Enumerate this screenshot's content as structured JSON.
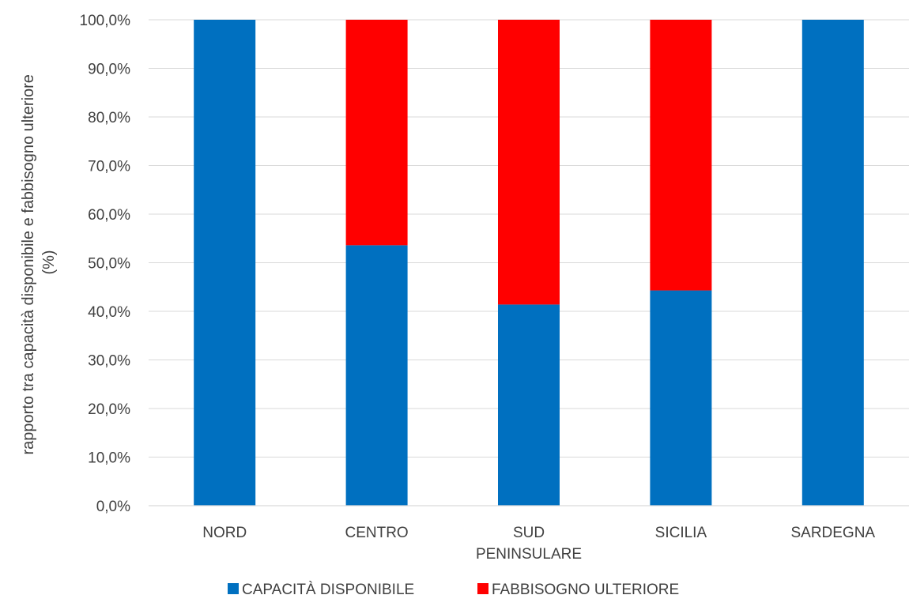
{
  "chart_data": {
    "type": "bar",
    "stacked": true,
    "categories": [
      "NORD",
      "CENTRO",
      "SUD PENINSULARE",
      "SICILIA",
      "SARDEGNA"
    ],
    "category_lines": [
      [
        "NORD"
      ],
      [
        "CENTRO"
      ],
      [
        "SUD",
        "PENINSULARE"
      ],
      [
        "SICILIA"
      ],
      [
        "SARDEGNA"
      ]
    ],
    "series": [
      {
        "name": "CAPACITÀ DISPONIBILE",
        "color": "#0070C0",
        "values": [
          100.0,
          53.6,
          41.4,
          44.3,
          100.0
        ]
      },
      {
        "name": "FABBISOGNO ULTERIORE",
        "color": "#FF0000",
        "values": [
          0.0,
          46.4,
          58.6,
          55.7,
          0.0
        ]
      }
    ],
    "ylabel_lines": [
      "rapporto tra capacità disponibile e fabbisogno ulteriore",
      "(%)"
    ],
    "xlabel": "",
    "ylim": [
      0,
      100
    ],
    "ytick_step": 10,
    "ytick_labels": [
      "0,0%",
      "10,0%",
      "20,0%",
      "30,0%",
      "40,0%",
      "50,0%",
      "60,0%",
      "70,0%",
      "80,0%",
      "90,0%",
      "100,0%"
    ],
    "grid": true,
    "legend_position": "bottom"
  }
}
